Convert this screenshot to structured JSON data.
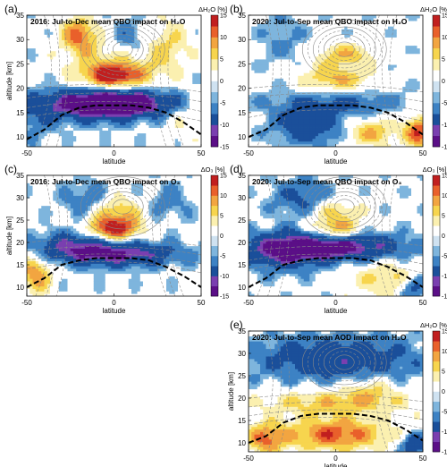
{
  "figure": {
    "panels": [
      {
        "id": "a",
        "label": "(a)",
        "title": "2016:  Jul-to-Dec mean QBO impact on H₂O",
        "cbar_title": "ΔH₂O [%]",
        "pattern": "a"
      },
      {
        "id": "b",
        "label": "(b)",
        "title": "2020:  Jul-to-Sep mean QBO impact on H₂O",
        "cbar_title": "ΔH₂O [%]",
        "pattern": "b"
      },
      {
        "id": "c",
        "label": "(c)",
        "title": "2016:  Jul-to-Dec mean QBO impact on O₃",
        "cbar_title": "ΔO₃ [%]",
        "pattern": "c"
      },
      {
        "id": "d",
        "label": "(d)",
        "title": "2020:  Jul-to-Sep mean QBO impact on O₃",
        "cbar_title": "ΔO₃ [%]",
        "pattern": "d"
      },
      {
        "id": "e",
        "label": "(e)",
        "title": "2020:  Jul-to-Sep mean AOD impact on H₂O",
        "cbar_title": "ΔH₂O [%]",
        "pattern": "e"
      }
    ],
    "colors": {
      "scale": [
        "#5b0f87",
        "#7a3fb0",
        "#1a4f9a",
        "#3d82c4",
        "#7eb5dd",
        "#cfe2f1",
        "#ffffff",
        "#fbf0b0",
        "#f7d54e",
        "#f2a541",
        "#e9602b",
        "#c11f1f"
      ],
      "tropopause": "#000000",
      "contour": "#888888"
    }
  },
  "chart_data": [
    {
      "type": "heatmap",
      "panel": "a",
      "title": "2016:  Jul-to-Dec mean QBO impact on H₂O",
      "xlabel": "latitude",
      "ylabel": "altitude [km]",
      "xlim": [
        -50,
        50
      ],
      "ylim": [
        8,
        35
      ],
      "xticks": [
        -50,
        0,
        50
      ],
      "yticks": [
        10,
        15,
        20,
        25,
        30,
        35
      ],
      "colorbar": {
        "label": "ΔH₂O [%]",
        "range": [
          -15,
          15
        ],
        "ticks": [
          15,
          10,
          5,
          0,
          -5,
          -10,
          -15
        ]
      },
      "tropopause": [
        [
          -50,
          9.5
        ],
        [
          -40,
          11.5
        ],
        [
          -30,
          14.5
        ],
        [
          -20,
          16.0
        ],
        [
          -10,
          16.5
        ],
        [
          0,
          16.5
        ],
        [
          10,
          16.5
        ],
        [
          20,
          16.0
        ],
        [
          30,
          15.0
        ],
        [
          40,
          13.0
        ],
        [
          50,
          10.5
        ]
      ]
    },
    {
      "type": "heatmap",
      "panel": "b",
      "title": "2020:  Jul-to-Sep mean QBO impact on H₂O",
      "xlabel": "latitude",
      "ylabel": "",
      "xlim": [
        -50,
        50
      ],
      "ylim": [
        8,
        35
      ],
      "xticks": [
        -50,
        0,
        50
      ],
      "yticks": [
        10,
        15,
        20,
        25,
        30,
        35
      ],
      "colorbar": {
        "label": "ΔH₂O [%]",
        "range": [
          -15,
          15
        ],
        "ticks": [
          15,
          10,
          5,
          0,
          -5,
          -10,
          -15
        ]
      },
      "tropopause": [
        [
          -50,
          10.0
        ],
        [
          -40,
          11.5
        ],
        [
          -30,
          14.5
        ],
        [
          -20,
          16.0
        ],
        [
          -10,
          16.5
        ],
        [
          0,
          16.5
        ],
        [
          10,
          16.5
        ],
        [
          20,
          16.0
        ],
        [
          30,
          15.0
        ],
        [
          40,
          13.0
        ],
        [
          50,
          10.5
        ]
      ]
    },
    {
      "type": "heatmap",
      "panel": "c",
      "title": "2016:  Jul-to-Dec mean QBO impact on O₃",
      "xlabel": "latitude",
      "ylabel": "altitude [km]",
      "xlim": [
        -50,
        50
      ],
      "ylim": [
        8,
        35
      ],
      "xticks": [
        -50,
        0,
        50
      ],
      "yticks": [
        10,
        15,
        20,
        25,
        30,
        35
      ],
      "colorbar": {
        "label": "ΔO₃ [%]",
        "range": [
          -15,
          15
        ],
        "ticks": [
          15,
          10,
          5,
          0,
          -5,
          -10,
          -15
        ]
      },
      "tropopause": [
        [
          -50,
          10.0
        ],
        [
          -40,
          12.0
        ],
        [
          -30,
          15.0
        ],
        [
          -20,
          16.0
        ],
        [
          -10,
          16.5
        ],
        [
          0,
          16.5
        ],
        [
          10,
          16.5
        ],
        [
          20,
          16.0
        ],
        [
          30,
          14.5
        ],
        [
          40,
          12.5
        ],
        [
          50,
          10.0
        ]
      ]
    },
    {
      "type": "heatmap",
      "panel": "d",
      "title": "2020:  Jul-to-Sep mean QBO impact on O₃",
      "xlabel": "latitude",
      "ylabel": "",
      "xlim": [
        -50,
        50
      ],
      "ylim": [
        8,
        35
      ],
      "xticks": [
        -50,
        0,
        50
      ],
      "yticks": [
        10,
        15,
        20,
        25,
        30,
        35
      ],
      "colorbar": {
        "label": "ΔO₃ [%]",
        "range": [
          -15,
          15
        ],
        "ticks": [
          15,
          10,
          5,
          0,
          -5,
          -10,
          -15
        ]
      },
      "tropopause": [
        [
          -50,
          10.0
        ],
        [
          -40,
          12.0
        ],
        [
          -30,
          15.0
        ],
        [
          -20,
          16.0
        ],
        [
          -10,
          16.5
        ],
        [
          0,
          16.5
        ],
        [
          10,
          16.5
        ],
        [
          20,
          16.0
        ],
        [
          30,
          14.5
        ],
        [
          40,
          12.5
        ],
        [
          50,
          10.0
        ]
      ]
    },
    {
      "type": "heatmap",
      "panel": "e",
      "title": "2020:  Jul-to-Sep mean AOD impact on H₂O",
      "xlabel": "latitude",
      "ylabel": "altitude [km]",
      "xlim": [
        -50,
        50
      ],
      "ylim": [
        8,
        35
      ],
      "xticks": [
        -50,
        0,
        50
      ],
      "yticks": [
        10,
        15,
        20,
        25,
        30,
        35
      ],
      "colorbar": {
        "label": "ΔH₂O [%]",
        "range": [
          -15,
          15
        ],
        "ticks": [
          15,
          10,
          5,
          0,
          -5,
          -10,
          -15
        ]
      },
      "tropopause": [
        [
          -50,
          10.0
        ],
        [
          -40,
          11.5
        ],
        [
          -30,
          14.5
        ],
        [
          -20,
          16.0
        ],
        [
          -10,
          16.5
        ],
        [
          0,
          16.5
        ],
        [
          10,
          16.5
        ],
        [
          20,
          16.0
        ],
        [
          30,
          15.0
        ],
        [
          40,
          13.0
        ],
        [
          50,
          10.5
        ]
      ]
    }
  ]
}
